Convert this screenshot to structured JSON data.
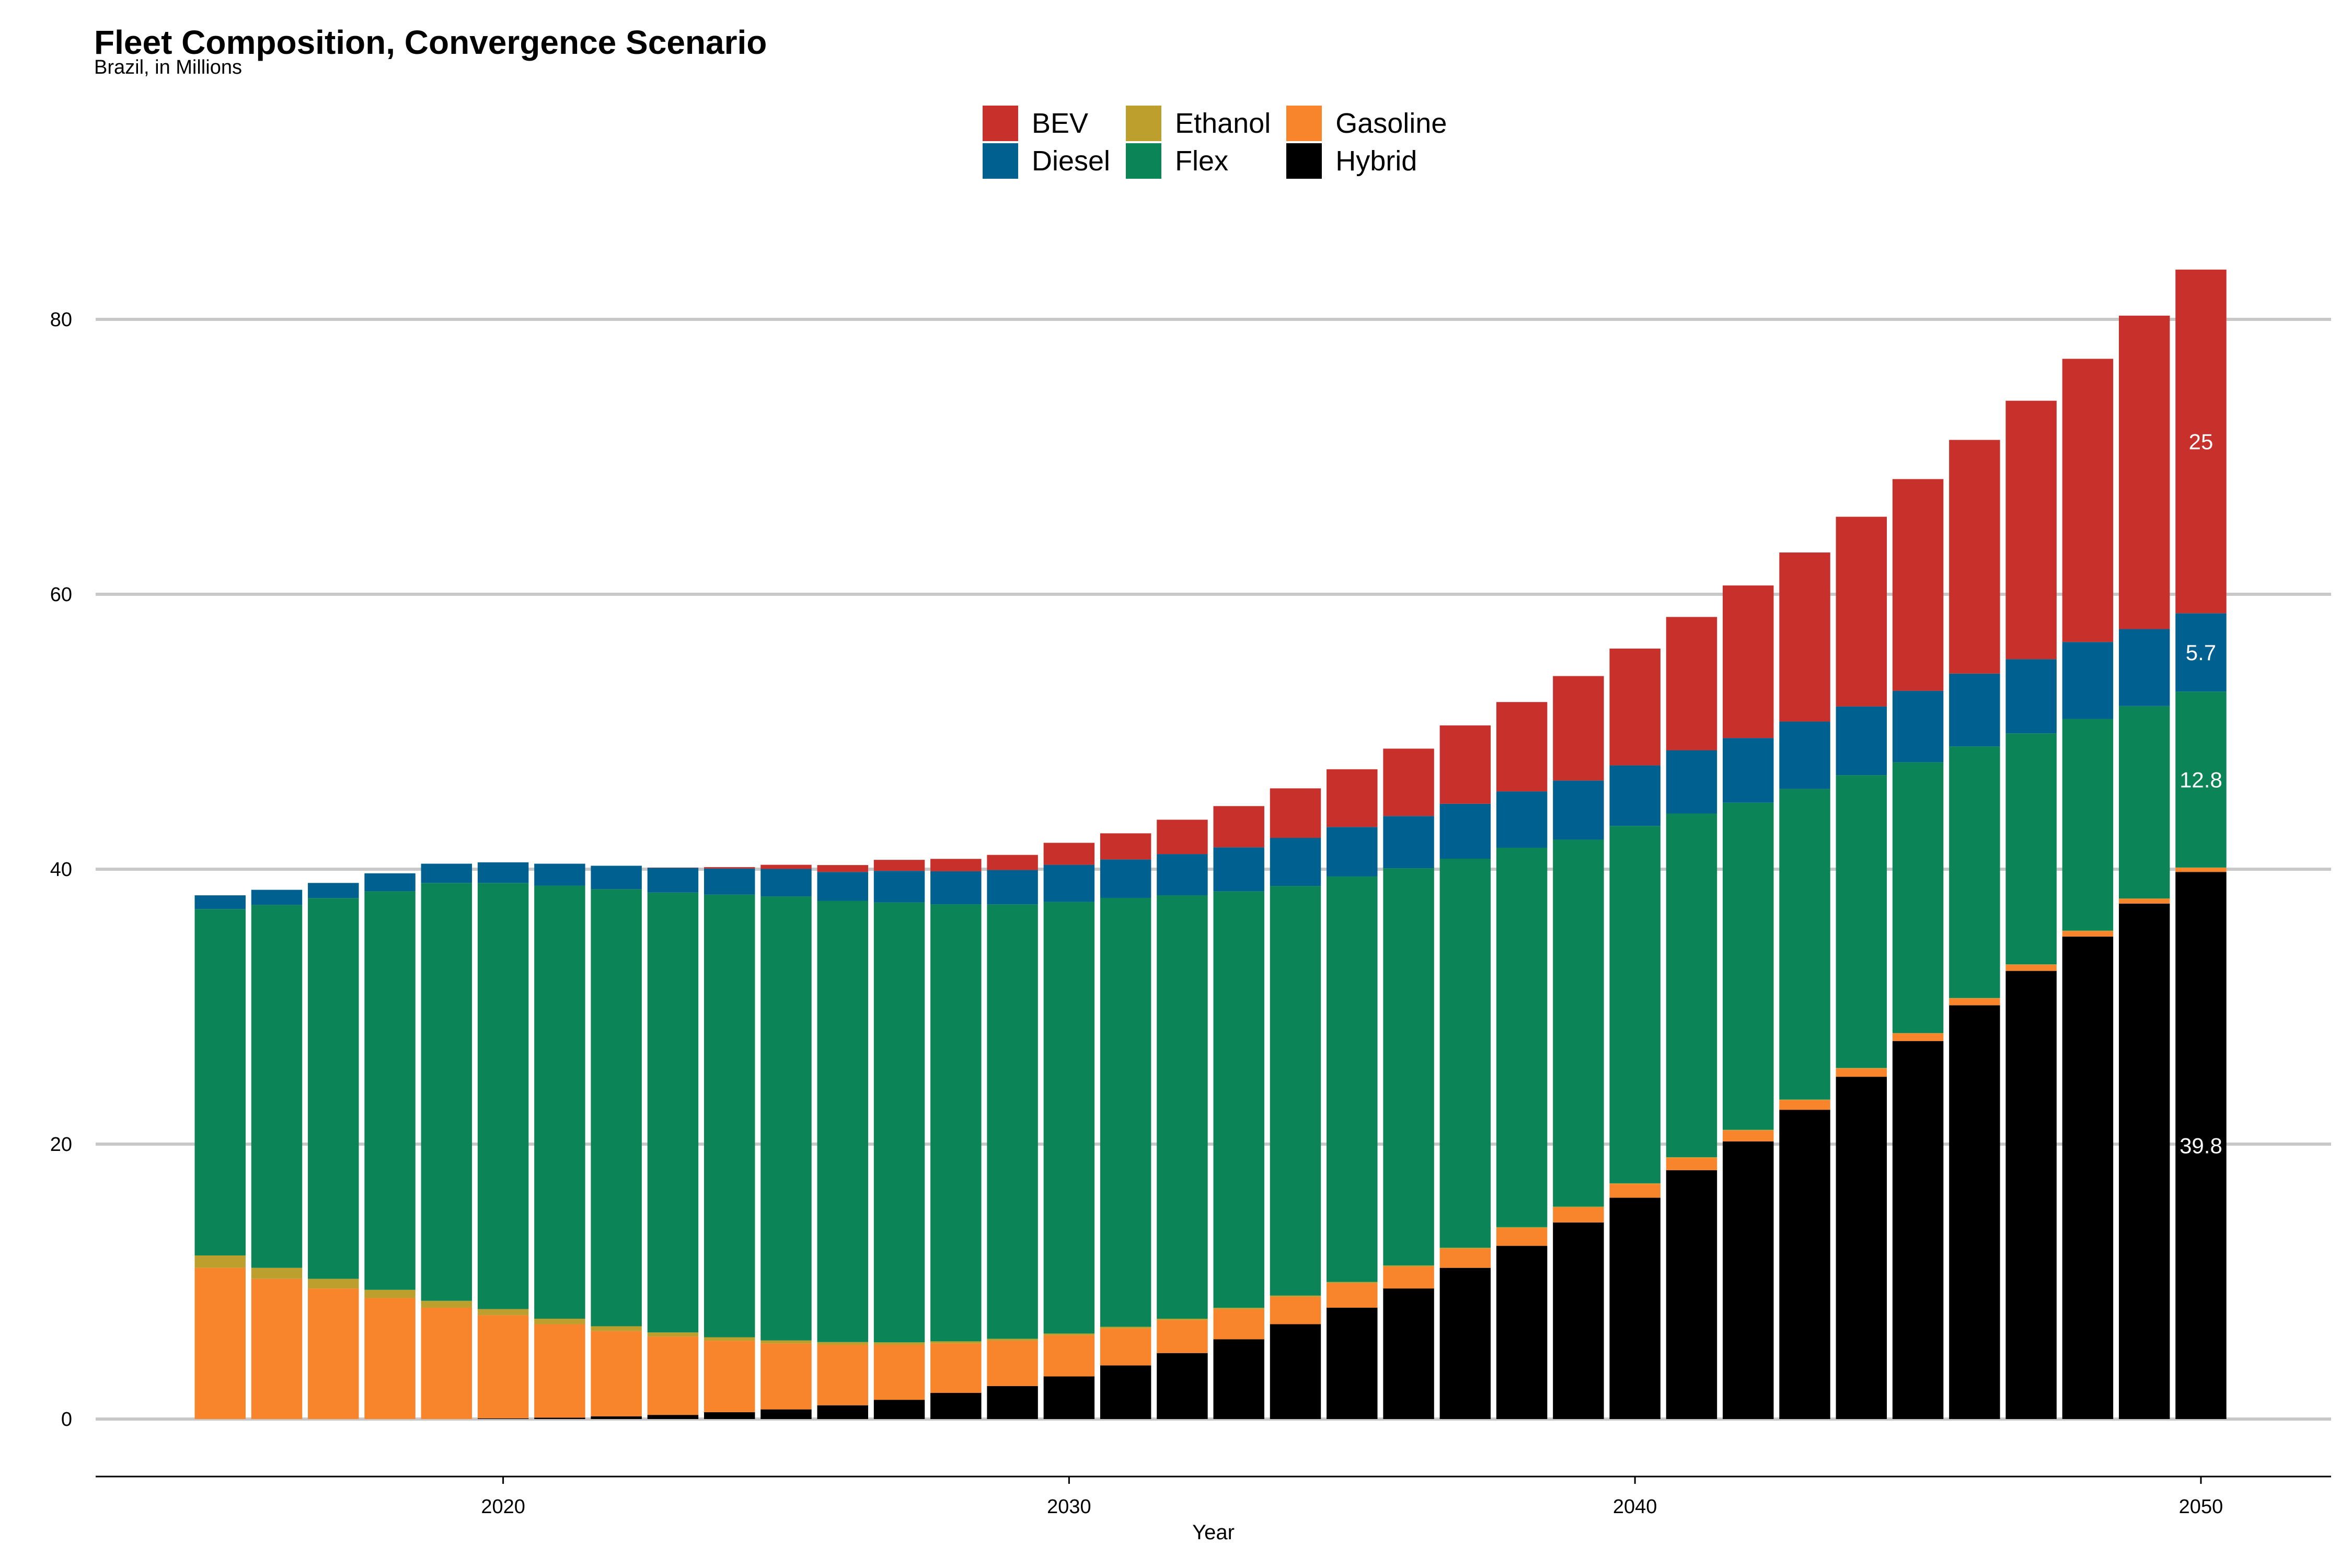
{
  "chart_data": {
    "type": "bar",
    "stacked": true,
    "title": "Fleet Composition, Convergence Scenario",
    "subtitle": "Brazil, in Millions",
    "xlabel": "Year",
    "ylabel": "",
    "ylim": [
      0,
      84
    ],
    "xlim": [
      2012.8,
      2052.3
    ],
    "x_ticks": [
      2020,
      2030,
      2040,
      2050
    ],
    "y_ticks": [
      0,
      20,
      40,
      60,
      80
    ],
    "grid": "horizontal",
    "legend_position": "top",
    "x": [
      2015,
      2016,
      2017,
      2018,
      2019,
      2020,
      2021,
      2022,
      2023,
      2024,
      2025,
      2026,
      2027,
      2028,
      2029,
      2030,
      2031,
      2032,
      2033,
      2034,
      2035,
      2036,
      2037,
      2038,
      2039,
      2040,
      2041,
      2042,
      2043,
      2044,
      2045,
      2046,
      2047,
      2048,
      2049,
      2050
    ],
    "series": [
      {
        "name": "Hybrid",
        "color": "#000000",
        "values": [
          0,
          0,
          0,
          0,
          0,
          0.05,
          0.1,
          0.2,
          0.3,
          0.5,
          0.7,
          1.0,
          1.4,
          1.9,
          2.4,
          3.1,
          3.9,
          4.8,
          5.8,
          6.9,
          8.1,
          9.5,
          11.0,
          12.6,
          14.3,
          16.1,
          18.1,
          20.2,
          22.5,
          24.9,
          27.5,
          30.1,
          32.6,
          35.1,
          37.5,
          39.8
        ]
      },
      {
        "name": "Gasoline",
        "color": "#F8842C",
        "values": [
          11.0,
          10.2,
          9.5,
          8.8,
          8.1,
          7.5,
          6.8,
          6.2,
          5.7,
          5.2,
          4.8,
          4.4,
          4.0,
          3.6,
          3.3,
          3.0,
          2.7,
          2.4,
          2.2,
          2.0,
          1.8,
          1.6,
          1.4,
          1.3,
          1.1,
          1.0,
          0.9,
          0.8,
          0.7,
          0.6,
          0.55,
          0.5,
          0.45,
          0.4,
          0.35,
          0.3
        ]
      },
      {
        "name": "Ethanol",
        "color": "#BC9F2C",
        "values": [
          0.9,
          0.8,
          0.7,
          0.6,
          0.5,
          0.45,
          0.4,
          0.35,
          0.3,
          0.25,
          0.22,
          0.2,
          0.18,
          0.15,
          0.14,
          0.12,
          0.11,
          0.1,
          0.09,
          0.08,
          0.07,
          0.07,
          0.06,
          0.06,
          0.05,
          0.05,
          0.05,
          0.04,
          0.04,
          0.04,
          0.03,
          0.03,
          0.03,
          0.03,
          0.02,
          0.02
        ]
      },
      {
        "name": "Flex",
        "color": "#0B8457",
        "values": [
          25.2,
          26.4,
          27.7,
          29.0,
          30.4,
          31.0,
          31.5,
          31.8,
          32.0,
          32.2,
          32.3,
          32.1,
          32.0,
          31.8,
          31.6,
          31.4,
          31.2,
          30.8,
          30.3,
          29.8,
          29.5,
          28.9,
          28.3,
          27.6,
          26.7,
          26.0,
          25.0,
          23.8,
          22.6,
          21.3,
          19.7,
          18.3,
          16.8,
          15.4,
          14.0,
          12.8
        ]
      },
      {
        "name": "Diesel",
        "color": "#00608F",
        "values": [
          1.0,
          1.1,
          1.1,
          1.3,
          1.4,
          1.5,
          1.6,
          1.7,
          1.8,
          1.9,
          2.0,
          2.1,
          2.3,
          2.4,
          2.5,
          2.7,
          2.8,
          3.0,
          3.2,
          3.5,
          3.6,
          3.8,
          4.0,
          4.1,
          4.3,
          4.4,
          4.6,
          4.7,
          4.9,
          5.0,
          5.2,
          5.3,
          5.4,
          5.6,
          5.6,
          5.7
        ]
      },
      {
        "name": "BEV",
        "color": "#C8302C",
        "values": [
          0,
          0,
          0,
          0,
          0,
          0,
          0,
          0,
          0.02,
          0.1,
          0.3,
          0.5,
          0.8,
          0.9,
          1.1,
          1.6,
          1.9,
          2.5,
          3.0,
          3.6,
          4.2,
          4.9,
          5.7,
          6.5,
          7.6,
          8.5,
          9.7,
          11.1,
          12.3,
          13.8,
          15.4,
          17.0,
          18.8,
          20.6,
          22.8,
          25.0
        ]
      }
    ],
    "legend_order": [
      "BEV",
      "Diesel",
      "Ethanol",
      "Flex",
      "Gasoline",
      "Hybrid"
    ],
    "annotations": [
      {
        "x": 2050,
        "series": "BEV",
        "text": "25"
      },
      {
        "x": 2050,
        "series": "Diesel",
        "text": "5.7"
      },
      {
        "x": 2050,
        "series": "Flex",
        "text": "12.8"
      },
      {
        "x": 2050,
        "series": "Hybrid",
        "text": "39.8"
      }
    ]
  }
}
